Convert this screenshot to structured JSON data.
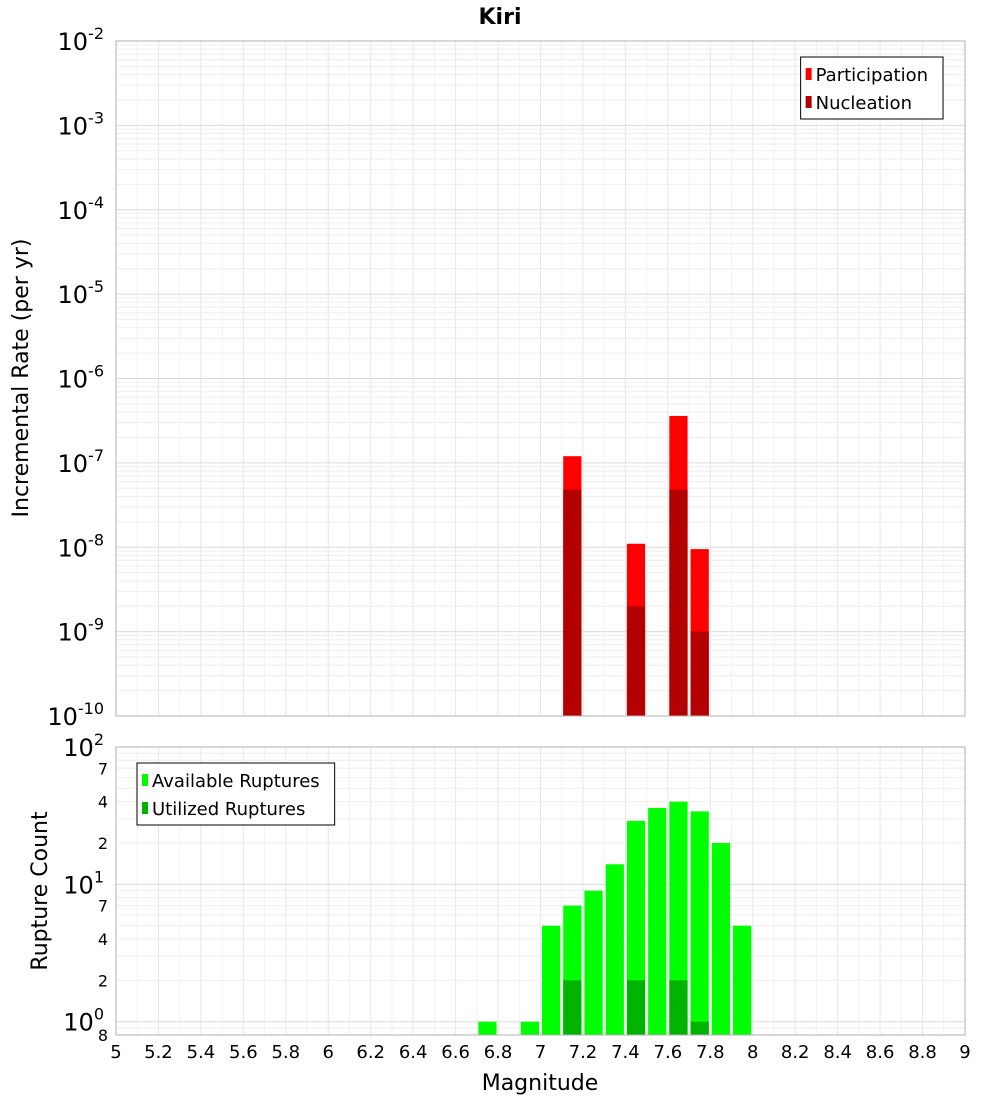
{
  "chart_data": {
    "title": "Kiri",
    "xlabel": "Magnitude",
    "xlim": [
      5,
      9
    ],
    "xticks": [
      "5",
      "5.2",
      "5.4",
      "5.6",
      "5.8",
      "6",
      "6.2",
      "6.4",
      "6.6",
      "6.8",
      "7",
      "7.2",
      "7.4",
      "7.6",
      "7.8",
      "8",
      "8.2",
      "8.4",
      "8.6",
      "8.8",
      "9"
    ],
    "bin_width": 0.1,
    "panels": [
      {
        "type": "bar",
        "ylabel": "Incremental Rate (per yr)",
        "yscale": "log",
        "ylim": [
          1e-10,
          0.01
        ],
        "yticks": [
          {
            "value": 0.01,
            "base": "10",
            "exp": "-2"
          },
          {
            "value": 0.001,
            "base": "10",
            "exp": "-3"
          },
          {
            "value": 0.0001,
            "base": "10",
            "exp": "-4"
          },
          {
            "value": 1e-05,
            "base": "10",
            "exp": "-5"
          },
          {
            "value": 1e-06,
            "base": "10",
            "exp": "-6"
          },
          {
            "value": 1e-07,
            "base": "10",
            "exp": "-7"
          },
          {
            "value": 1e-08,
            "base": "10",
            "exp": "-8"
          },
          {
            "value": 1e-09,
            "base": "10",
            "exp": "-9"
          },
          {
            "value": 1e-10,
            "base": "10",
            "exp": "-10"
          }
        ],
        "legend": "top-right",
        "series": [
          {
            "name": "Participation",
            "color": "#ff0000",
            "x": [
              7.15,
              7.45,
              7.65,
              7.75
            ],
            "values": [
              1.2e-07,
              1.1e-08,
              3.6e-07,
              9.5e-09
            ]
          },
          {
            "name": "Nucleation",
            "color": "#b30000",
            "x": [
              7.15,
              7.45,
              7.65,
              7.75
            ],
            "values": [
              4.8e-08,
              2e-09,
              4.8e-08,
              1e-09
            ]
          }
        ]
      },
      {
        "type": "bar",
        "ylabel": "Rupture Count",
        "yscale": "log",
        "ylim": [
          0.8,
          100
        ],
        "yticks": [
          {
            "value": 100,
            "base": "10",
            "exp": "2",
            "major": true
          },
          {
            "value": 70,
            "label": "7"
          },
          {
            "value": 40,
            "label": "4"
          },
          {
            "value": 20,
            "label": "2"
          },
          {
            "value": 10,
            "base": "10",
            "exp": "1",
            "major": true
          },
          {
            "value": 7,
            "label": "7"
          },
          {
            "value": 4,
            "label": "4"
          },
          {
            "value": 2,
            "label": "2"
          },
          {
            "value": 1,
            "base": "10",
            "exp": "0",
            "major": true
          },
          {
            "value": 0.8,
            "label": "8"
          }
        ],
        "legend": "top-left",
        "series": [
          {
            "name": "Available Ruptures",
            "color": "#00ff00",
            "x": [
              6.75,
              6.95,
              7.05,
              7.15,
              7.25,
              7.35,
              7.45,
              7.55,
              7.65,
              7.75,
              7.85,
              7.95
            ],
            "values": [
              1,
              1,
              5,
              7,
              9,
              14,
              29,
              36,
              40,
              34,
              20,
              5
            ]
          },
          {
            "name": "Utilized Ruptures",
            "color": "#00b300",
            "x": [
              7.15,
              7.45,
              7.65,
              7.75
            ],
            "values": [
              2,
              2,
              2,
              1
            ]
          }
        ]
      }
    ]
  }
}
